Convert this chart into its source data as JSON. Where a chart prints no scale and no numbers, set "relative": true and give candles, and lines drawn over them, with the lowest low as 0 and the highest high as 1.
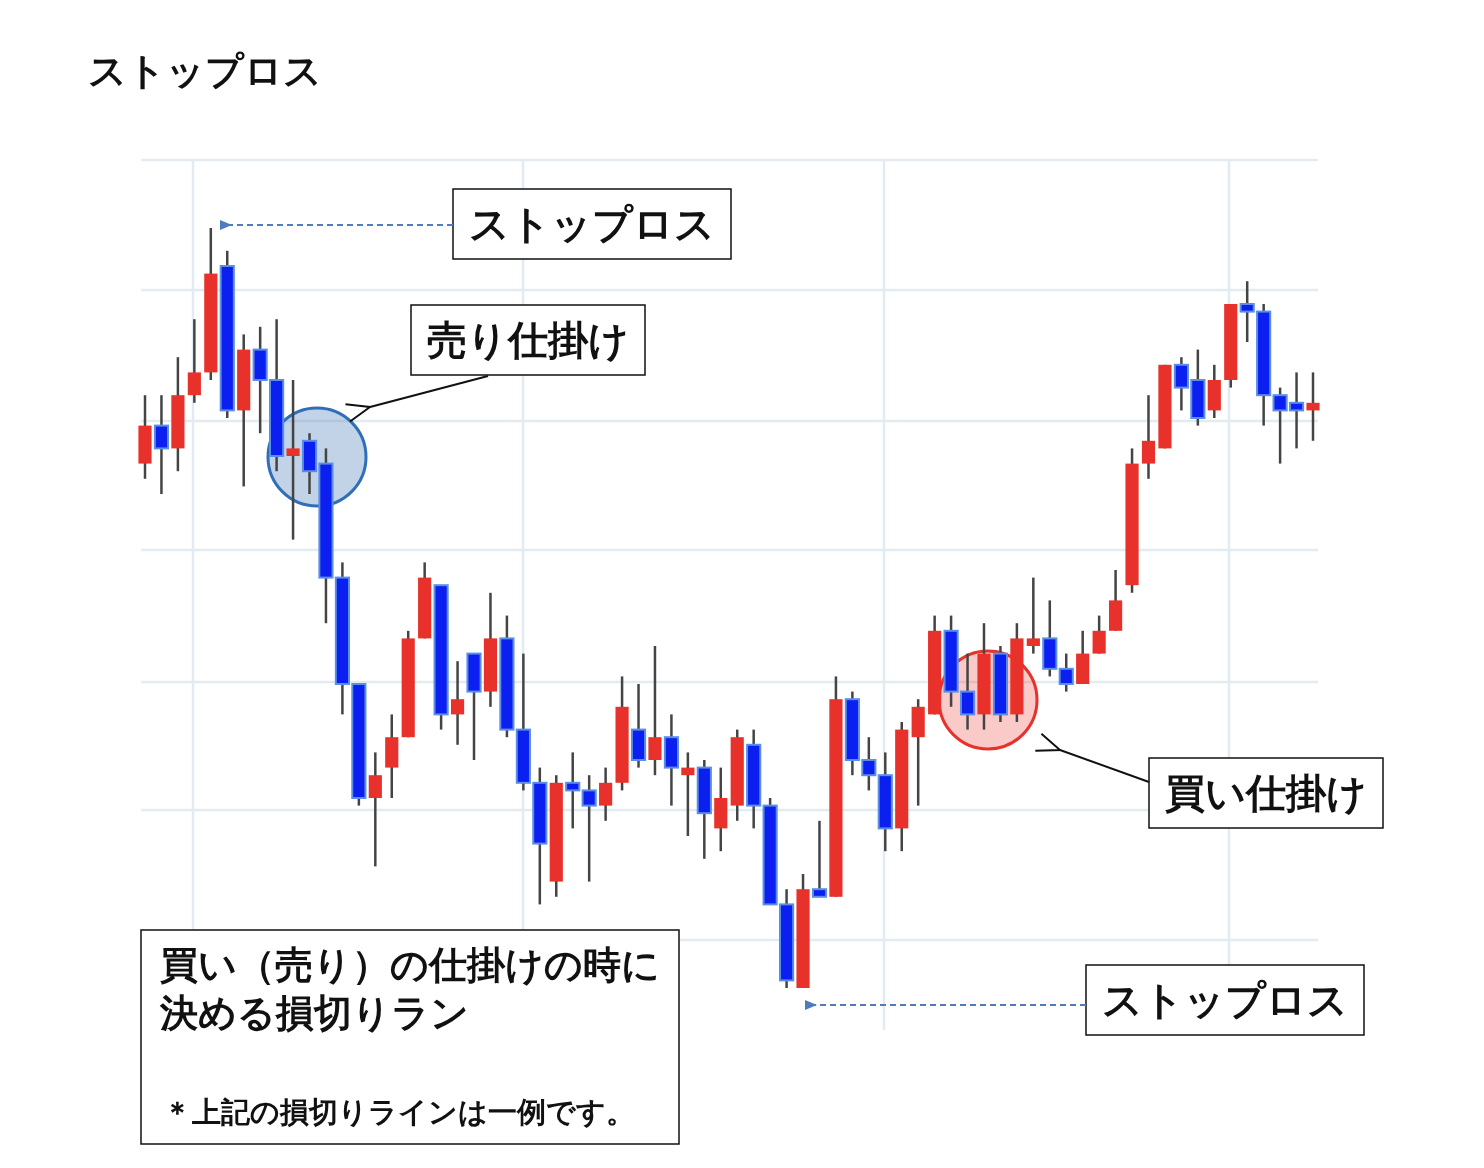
{
  "chart_data": {
    "type": "candlestick",
    "title": "ストップロス",
    "relative": true,
    "grid": true,
    "categories": [
      null,
      null,
      null,
      null,
      null,
      null,
      null,
      null,
      null,
      null,
      null,
      null,
      null,
      null,
      null,
      null,
      null,
      null,
      null,
      null,
      null,
      null,
      null,
      null,
      null,
      null,
      null,
      null,
      null,
      null,
      null,
      null,
      null,
      null,
      null,
      null,
      null,
      null,
      null,
      null,
      null,
      null,
      null,
      null,
      null,
      null,
      null,
      null,
      null,
      null,
      null,
      null,
      null,
      null,
      null,
      null,
      null,
      null,
      null,
      null,
      null,
      null,
      null,
      null,
      null,
      null,
      null,
      null,
      null,
      null,
      null,
      null
    ],
    "ohlc": [
      [
        0.69,
        0.78,
        0.67,
        0.74
      ],
      [
        0.74,
        0.78,
        0.65,
        0.71
      ],
      [
        0.71,
        0.83,
        0.68,
        0.78
      ],
      [
        0.78,
        0.88,
        0.77,
        0.81
      ],
      [
        0.81,
        1.0,
        0.8,
        0.94
      ],
      [
        0.95,
        0.97,
        0.75,
        0.76
      ],
      [
        0.76,
        0.86,
        0.66,
        0.84
      ],
      [
        0.84,
        0.87,
        0.73,
        0.8
      ],
      [
        0.8,
        0.88,
        0.68,
        0.7
      ],
      [
        0.7,
        0.8,
        0.59,
        0.71
      ],
      [
        0.72,
        0.73,
        0.65,
        0.68
      ],
      [
        0.69,
        0.71,
        0.48,
        0.54
      ],
      [
        0.54,
        0.56,
        0.36,
        0.4
      ],
      [
        0.4,
        0.4,
        0.24,
        0.25
      ],
      [
        0.25,
        0.31,
        0.16,
        0.28
      ],
      [
        0.29,
        0.36,
        0.25,
        0.33
      ],
      [
        0.33,
        0.47,
        0.33,
        0.46
      ],
      [
        0.46,
        0.56,
        0.46,
        0.54
      ],
      [
        0.53,
        0.53,
        0.34,
        0.36
      ],
      [
        0.36,
        0.43,
        0.32,
        0.38
      ],
      [
        0.44,
        0.44,
        0.3,
        0.39
      ],
      [
        0.39,
        0.52,
        0.37,
        0.46
      ],
      [
        0.46,
        0.49,
        0.33,
        0.34
      ],
      [
        0.34,
        0.44,
        0.26,
        0.27
      ],
      [
        0.27,
        0.29,
        0.11,
        0.19
      ],
      [
        0.14,
        0.28,
        0.12,
        0.27
      ],
      [
        0.27,
        0.31,
        0.21,
        0.26
      ],
      [
        0.26,
        0.28,
        0.14,
        0.24
      ],
      [
        0.24,
        0.29,
        0.22,
        0.27
      ],
      [
        0.27,
        0.41,
        0.26,
        0.37
      ],
      [
        0.34,
        0.4,
        0.29,
        0.3
      ],
      [
        0.3,
        0.45,
        0.28,
        0.33
      ],
      [
        0.33,
        0.36,
        0.24,
        0.29
      ],
      [
        0.28,
        0.31,
        0.2,
        0.29
      ],
      [
        0.29,
        0.3,
        0.17,
        0.23
      ],
      [
        0.21,
        0.29,
        0.18,
        0.25
      ],
      [
        0.24,
        0.34,
        0.22,
        0.33
      ],
      [
        0.32,
        0.34,
        0.21,
        0.24
      ],
      [
        0.24,
        0.25,
        0.11,
        0.11
      ],
      [
        0.11,
        0.13,
        0.0,
        0.01
      ],
      [
        0.0,
        0.15,
        0.0,
        0.13
      ],
      [
        0.13,
        0.22,
        0.12,
        0.12
      ],
      [
        0.12,
        0.41,
        0.12,
        0.38
      ],
      [
        0.38,
        0.39,
        0.28,
        0.3
      ],
      [
        0.3,
        0.33,
        0.26,
        0.28
      ],
      [
        0.28,
        0.31,
        0.18,
        0.21
      ],
      [
        0.21,
        0.35,
        0.18,
        0.34
      ],
      [
        0.33,
        0.38,
        0.24,
        0.37
      ],
      [
        0.36,
        0.49,
        0.36,
        0.47
      ],
      [
        0.47,
        0.49,
        0.37,
        0.39
      ],
      [
        0.39,
        0.44,
        0.34,
        0.36
      ],
      [
        0.36,
        0.48,
        0.34,
        0.44
      ],
      [
        0.44,
        0.45,
        0.35,
        0.36
      ],
      [
        0.36,
        0.48,
        0.35,
        0.46
      ],
      [
        0.45,
        0.54,
        0.44,
        0.46
      ],
      [
        0.46,
        0.51,
        0.41,
        0.42
      ],
      [
        0.42,
        0.44,
        0.39,
        0.4
      ],
      [
        0.4,
        0.47,
        0.4,
        0.44
      ],
      [
        0.44,
        0.49,
        0.44,
        0.47
      ],
      [
        0.47,
        0.55,
        0.47,
        0.51
      ],
      [
        0.53,
        0.71,
        0.52,
        0.69
      ],
      [
        0.69,
        0.78,
        0.67,
        0.72
      ],
      [
        0.71,
        0.82,
        0.71,
        0.82
      ],
      [
        0.82,
        0.83,
        0.76,
        0.79
      ],
      [
        0.8,
        0.84,
        0.74,
        0.75
      ],
      [
        0.76,
        0.82,
        0.75,
        0.8
      ],
      [
        0.8,
        0.9,
        0.79,
        0.9
      ],
      [
        0.9,
        0.93,
        0.85,
        0.89
      ],
      [
        0.89,
        0.9,
        0.74,
        0.78
      ],
      [
        0.78,
        0.79,
        0.69,
        0.76
      ],
      [
        0.77,
        0.81,
        0.71,
        0.76
      ],
      [
        0.76,
        0.81,
        0.72,
        0.77
      ]
    ],
    "colors": [
      "#e8312a",
      "#0a1ff0",
      "#e8312a",
      "#e8312a",
      "#e8312a",
      "#0a1ff0",
      "#e8312a",
      "#0a1ff0",
      "#0a1ff0",
      "#e8312a",
      "#0a1ff0",
      "#0a1ff0",
      "#0a1ff0",
      "#0a1ff0",
      "#e8312a",
      "#e8312a",
      "#e8312a",
      "#e8312a",
      "#0a1ff0",
      "#e8312a",
      "#0a1ff0",
      "#e8312a",
      "#0a1ff0",
      "#0a1ff0",
      "#0a1ff0",
      "#e8312a",
      "#0a1ff0",
      "#0a1ff0",
      "#e8312a",
      "#e8312a",
      "#0a1ff0",
      "#e8312a",
      "#0a1ff0",
      "#e8312a",
      "#0a1ff0",
      "#e8312a",
      "#e8312a",
      "#0a1ff0",
      "#0a1ff0",
      "#0a1ff0",
      "#e8312a",
      "#0a1ff0",
      "#e8312a",
      "#0a1ff0",
      "#0a1ff0",
      "#0a1ff0",
      "#e8312a",
      "#e8312a",
      "#e8312a",
      "#0a1ff0",
      "#0a1ff0",
      "#e8312a",
      "#0a1ff0",
      "#e8312a",
      "#e8312a",
      "#0a1ff0",
      "#0a1ff0",
      "#e8312a",
      "#e8312a",
      "#e8312a",
      "#e8312a",
      "#e8312a",
      "#e8312a",
      "#0a1ff0",
      "#0a1ff0",
      "#e8312a",
      "#e8312a",
      "#0a1ff0",
      "#0a1ff0",
      "#0a1ff0",
      "#0a1ff0",
      "#e8312a"
    ],
    "annotations": [
      "ストップロス",
      "売り仕掛け",
      "買い仕掛け",
      "ストップロス",
      "買い（売り）の仕掛けの時に決める損切りラン",
      "＊上記の損切りラインは一例です。"
    ]
  }
}
